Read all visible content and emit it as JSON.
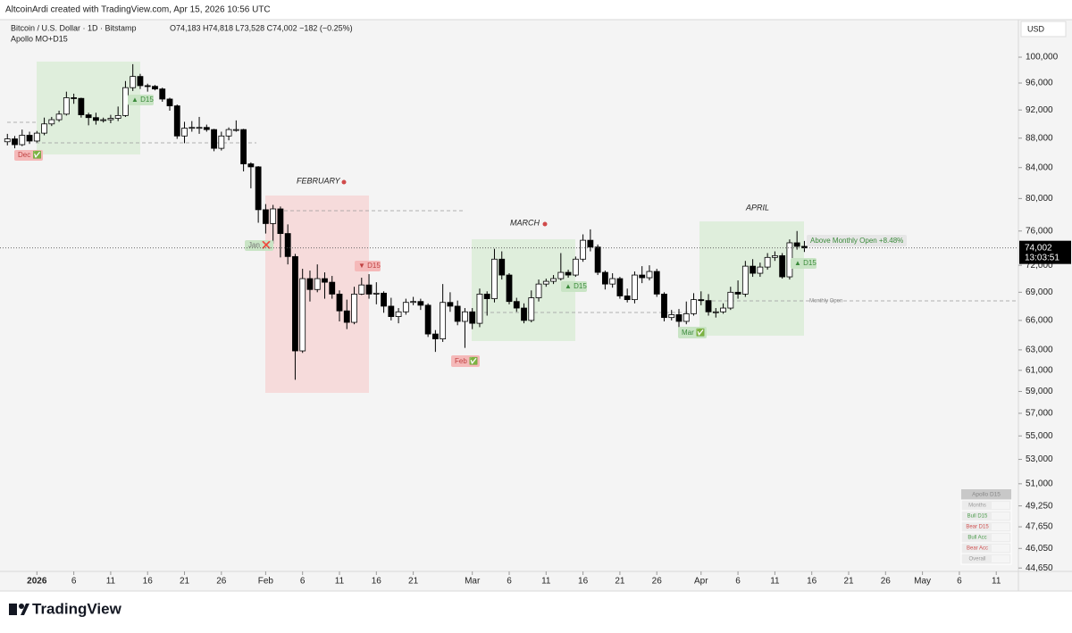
{
  "header": {
    "credit": "AltcoinArdi created with TradingView.com, Apr 15, 2026 10:56 UTC"
  },
  "chart_data": {
    "type": "candlestick",
    "symbol": "Bitcoin / U.S. Dollar · 1D · Bitstamp",
    "ohlc_header": "O74,183 H74,818 L73,528 C74,002 −182 (−0.25%)",
    "indicator": "Apollo MO+D15",
    "currency": "USD",
    "log_scale": true,
    "up_color": "#ffffff",
    "down_color": "#000000",
    "x": [
      "2025-12-28",
      "2025-12-29",
      "2025-12-30",
      "2025-12-31",
      "2026-01-01",
      "2026-01-02",
      "2026-01-03",
      "2026-01-04",
      "2026-01-05",
      "2026-01-06",
      "2026-01-07",
      "2026-01-08",
      "2026-01-09",
      "2026-01-10",
      "2026-01-11",
      "2026-01-12",
      "2026-01-13",
      "2026-01-14",
      "2026-01-15",
      "2026-01-16",
      "2026-01-17",
      "2026-01-18",
      "2026-01-19",
      "2026-01-20",
      "2026-01-21",
      "2026-01-22",
      "2026-01-23",
      "2026-01-24",
      "2026-01-25",
      "2026-01-26",
      "2026-01-27",
      "2026-01-28",
      "2026-01-29",
      "2026-01-30",
      "2026-01-31",
      "2026-02-01",
      "2026-02-02",
      "2026-02-03",
      "2026-02-04",
      "2026-02-05",
      "2026-02-06",
      "2026-02-07",
      "2026-02-08",
      "2026-02-09",
      "2026-02-10",
      "2026-02-11",
      "2026-02-12",
      "2026-02-13",
      "2026-02-14",
      "2026-02-15",
      "2026-02-16",
      "2026-02-17",
      "2026-02-18",
      "2026-02-19",
      "2026-02-20",
      "2026-02-21",
      "2026-02-22",
      "2026-02-23",
      "2026-02-24",
      "2026-02-25",
      "2026-02-26",
      "2026-02-27",
      "2026-02-28",
      "2026-03-01",
      "2026-03-02",
      "2026-03-03",
      "2026-03-04",
      "2026-03-05",
      "2026-03-06",
      "2026-03-07",
      "2026-03-08",
      "2026-03-09",
      "2026-03-10",
      "2026-03-11",
      "2026-03-12",
      "2026-03-13",
      "2026-03-14",
      "2026-03-15",
      "2026-03-16",
      "2026-03-17",
      "2026-03-18",
      "2026-03-19",
      "2026-03-20",
      "2026-03-21",
      "2026-03-22",
      "2026-03-23",
      "2026-03-24",
      "2026-03-25",
      "2026-03-26",
      "2026-03-27",
      "2026-03-28",
      "2026-03-29",
      "2026-03-30",
      "2026-03-31",
      "2026-04-01",
      "2026-04-02",
      "2026-04-03",
      "2026-04-04",
      "2026-04-05",
      "2026-04-06",
      "2026-04-07",
      "2026-04-08",
      "2026-04-09",
      "2026-04-10",
      "2026-04-11",
      "2026-04-12",
      "2026-04-13",
      "2026-04-14",
      "2026-04-15"
    ],
    "open": [
      87500,
      87900,
      87100,
      88400,
      87600,
      88700,
      90000,
      90600,
      91400,
      93800,
      93700,
      91300,
      90900,
      90500,
      90600,
      90800,
      91200,
      95300,
      97000,
      95600,
      95500,
      95100,
      93600,
      92600,
      88300,
      89400,
      89500,
      89500,
      89200,
      86600,
      88300,
      89200,
      89200,
      84500,
      84100,
      78600,
      76900,
      78700,
      75700,
      73000,
      62900,
      70500,
      69300,
      70500,
      70100,
      68800,
      67000,
      65800,
      68800,
      69800,
      68800,
      68900,
      67500,
      66400,
      66900,
      67900,
      68000,
      67600,
      64600,
      64100,
      67900,
      67500,
      65900,
      66900,
      65700,
      68800,
      68300,
      72700,
      70900,
      68000,
      67300,
      66000,
      68400,
      69900,
      70200,
      70500,
      71200,
      70900,
      72700,
      74900,
      74100,
      71200,
      69900,
      70500,
      68600,
      68200,
      70900,
      70600,
      71300,
      68800,
      66300,
      66600,
      65900,
      66700,
      68200,
      68100,
      66900,
      66900,
      67300,
      69000,
      68800,
      71900,
      71100,
      71800,
      72900,
      73100,
      70700,
      74600,
      74183
    ],
    "high": [
      88600,
      88300,
      89200,
      88900,
      89000,
      90900,
      91000,
      91900,
      94700,
      94400,
      93800,
      91600,
      91600,
      90900,
      91300,
      92500,
      96300,
      98900,
      97400,
      95900,
      95700,
      95300,
      93800,
      92800,
      90300,
      90400,
      91000,
      89900,
      89300,
      88900,
      89500,
      90500,
      89300,
      84700,
      84200,
      79300,
      79200,
      79000,
      76800,
      73300,
      71600,
      71400,
      72100,
      71200,
      70800,
      69200,
      68200,
      69600,
      70600,
      71000,
      70100,
      69100,
      68400,
      67300,
      68300,
      68500,
      68300,
      67800,
      65000,
      69900,
      69000,
      68100,
      67300,
      67300,
      69400,
      69100,
      73900,
      73600,
      71100,
      68400,
      67800,
      69200,
      70400,
      70500,
      70900,
      73400,
      71500,
      73000,
      75600,
      76200,
      74400,
      71400,
      71100,
      70700,
      69400,
      71300,
      71900,
      72000,
      71600,
      69000,
      67100,
      67200,
      68000,
      68900,
      69100,
      68800,
      67300,
      67800,
      69600,
      70300,
      72500,
      72700,
      72300,
      73400,
      73600,
      73400,
      75000,
      76000,
      74818
    ],
    "low": [
      87000,
      86600,
      86900,
      87200,
      87400,
      88400,
      89700,
      90300,
      91200,
      92900,
      90900,
      89800,
      89900,
      90200,
      90100,
      90400,
      91000,
      94800,
      95100,
      94700,
      94900,
      93200,
      91900,
      87900,
      87300,
      88900,
      88600,
      88900,
      86200,
      86300,
      87700,
      88900,
      83500,
      81300,
      77000,
      75700,
      74500,
      72900,
      72100,
      60100,
      62700,
      68000,
      69000,
      68300,
      68300,
      65900,
      65100,
      65600,
      68700,
      68300,
      67700,
      66800,
      66000,
      65700,
      66600,
      67600,
      67100,
      64300,
      62800,
      63800,
      66900,
      65500,
      63200,
      65100,
      65300,
      66500,
      67900,
      70400,
      67700,
      66900,
      65700,
      65800,
      68000,
      69600,
      69900,
      70300,
      70600,
      70700,
      72400,
      73600,
      70900,
      69300,
      69500,
      68300,
      67900,
      67800,
      70000,
      70300,
      68500,
      65900,
      66000,
      65300,
      65600,
      66500,
      67600,
      66500,
      66300,
      66700,
      67100,
      68300,
      68500,
      70700,
      70700,
      71500,
      72500,
      70500,
      70400,
      73800,
      73528
    ],
    "close": [
      87900,
      87100,
      88400,
      87600,
      88700,
      90000,
      90600,
      91400,
      93800,
      93700,
      91300,
      90900,
      90500,
      90600,
      90800,
      91200,
      95300,
      97000,
      95600,
      95500,
      95100,
      93600,
      92600,
      88300,
      89400,
      89500,
      89500,
      89200,
      86600,
      88300,
      89200,
      89200,
      84500,
      84100,
      78600,
      76900,
      78700,
      75700,
      73000,
      62900,
      70500,
      69300,
      70500,
      70100,
      68800,
      67000,
      65800,
      68800,
      69800,
      68800,
      68900,
      67500,
      66400,
      66900,
      67900,
      68000,
      67600,
      64600,
      64100,
      67900,
      67500,
      65900,
      66900,
      65700,
      68800,
      68300,
      72700,
      70900,
      68000,
      67300,
      66000,
      68400,
      69900,
      70200,
      70500,
      71200,
      70900,
      72700,
      74900,
      74100,
      71200,
      69900,
      70500,
      68600,
      68200,
      70900,
      70600,
      71300,
      68800,
      66300,
      66600,
      65900,
      66700,
      68200,
      68100,
      66900,
      66900,
      67300,
      69000,
      68800,
      71900,
      71100,
      71800,
      72900,
      73100,
      70700,
      74600,
      74183,
      74002
    ],
    "xlim": [
      "2025-12-27",
      "2026-05-14"
    ],
    "xticks": [
      {
        "value": "2026-01-01",
        "label": "2026"
      },
      {
        "value": "2026-01-06",
        "label": "6"
      },
      {
        "value": "2026-01-11",
        "label": "11"
      },
      {
        "value": "2026-01-16",
        "label": "16"
      },
      {
        "value": "2026-01-21",
        "label": "21"
      },
      {
        "value": "2026-01-26",
        "label": "26"
      },
      {
        "value": "2026-02-01",
        "label": "Feb"
      },
      {
        "value": "2026-02-06",
        "label": "6"
      },
      {
        "value": "2026-02-11",
        "label": "11"
      },
      {
        "value": "2026-02-16",
        "label": "16"
      },
      {
        "value": "2026-02-21",
        "label": "21"
      },
      {
        "value": "2026-03-01",
        "label": "Mar"
      },
      {
        "value": "2026-03-06",
        "label": "6"
      },
      {
        "value": "2026-03-11",
        "label": "11"
      },
      {
        "value": "2026-03-16",
        "label": "16"
      },
      {
        "value": "2026-03-21",
        "label": "21"
      },
      {
        "value": "2026-03-26",
        "label": "26"
      },
      {
        "value": "2026-04-01",
        "label": "Apr"
      },
      {
        "value": "2026-04-06",
        "label": "6"
      },
      {
        "value": "2026-04-11",
        "label": "11"
      },
      {
        "value": "2026-04-16",
        "label": "16"
      },
      {
        "value": "2026-04-21",
        "label": "21"
      },
      {
        "value": "2026-04-26",
        "label": "26"
      },
      {
        "value": "2026-05-01",
        "label": "May"
      },
      {
        "value": "2026-05-06",
        "label": "6"
      },
      {
        "value": "2026-05-11",
        "label": "11"
      }
    ],
    "ylim": [
      44100,
      106100
    ],
    "yticks": [
      {
        "value": 100000,
        "label": "100,000"
      },
      {
        "value": 96000,
        "label": "96,000"
      },
      {
        "value": 92000,
        "label": "92,000"
      },
      {
        "value": 88000,
        "label": "88,000"
      },
      {
        "value": 84000,
        "label": "84,000"
      },
      {
        "value": 80000,
        "label": "80,000"
      },
      {
        "value": 76000,
        "label": "76,000"
      },
      {
        "value": 72000,
        "label": "72,000"
      },
      {
        "value": 69000,
        "label": "69,000"
      },
      {
        "value": 66000,
        "label": "66,000"
      },
      {
        "value": 63000,
        "label": "63,000"
      },
      {
        "value": 61000,
        "label": "61,000"
      },
      {
        "value": 59000,
        "label": "59,000"
      },
      {
        "value": 57000,
        "label": "57,000"
      },
      {
        "value": 55000,
        "label": "55,000"
      },
      {
        "value": 53000,
        "label": "53,000"
      },
      {
        "value": 51000,
        "label": "51,000"
      },
      {
        "value": 49250,
        "label": "49,250"
      },
      {
        "value": 47650,
        "label": "47,650"
      },
      {
        "value": 46050,
        "label": "46,050"
      },
      {
        "value": 44650,
        "label": "44,650"
      }
    ],
    "last_price": {
      "value": 74002,
      "label": "74,002",
      "countdown": "13:03:51"
    },
    "annotations": {
      "february": "FEBRUARY",
      "march": "MARCH",
      "april": "APRIL",
      "dec_tag": "Dec ✅",
      "jan_tag": "Jan ❌",
      "feb_tag": "Feb ✅",
      "mar_tag": "Mar ✅",
      "bull_d15_jan": "▲ D15",
      "bear_d15_feb": "▼ D15",
      "bull_d15_mar": "▲ D15",
      "bull_d15_apr": "▲ D15",
      "above_open": "Above Monthly Open  +8.48%",
      "monthly_open": "Monthly Open"
    },
    "stats_table": {
      "title": "Apollo D15",
      "rows": [
        "Months",
        "Bull D15",
        "Bear D15",
        "Bull Acc",
        "Bear Acc",
        "Overall"
      ]
    }
  },
  "footer": {
    "brand": "TradingView"
  }
}
